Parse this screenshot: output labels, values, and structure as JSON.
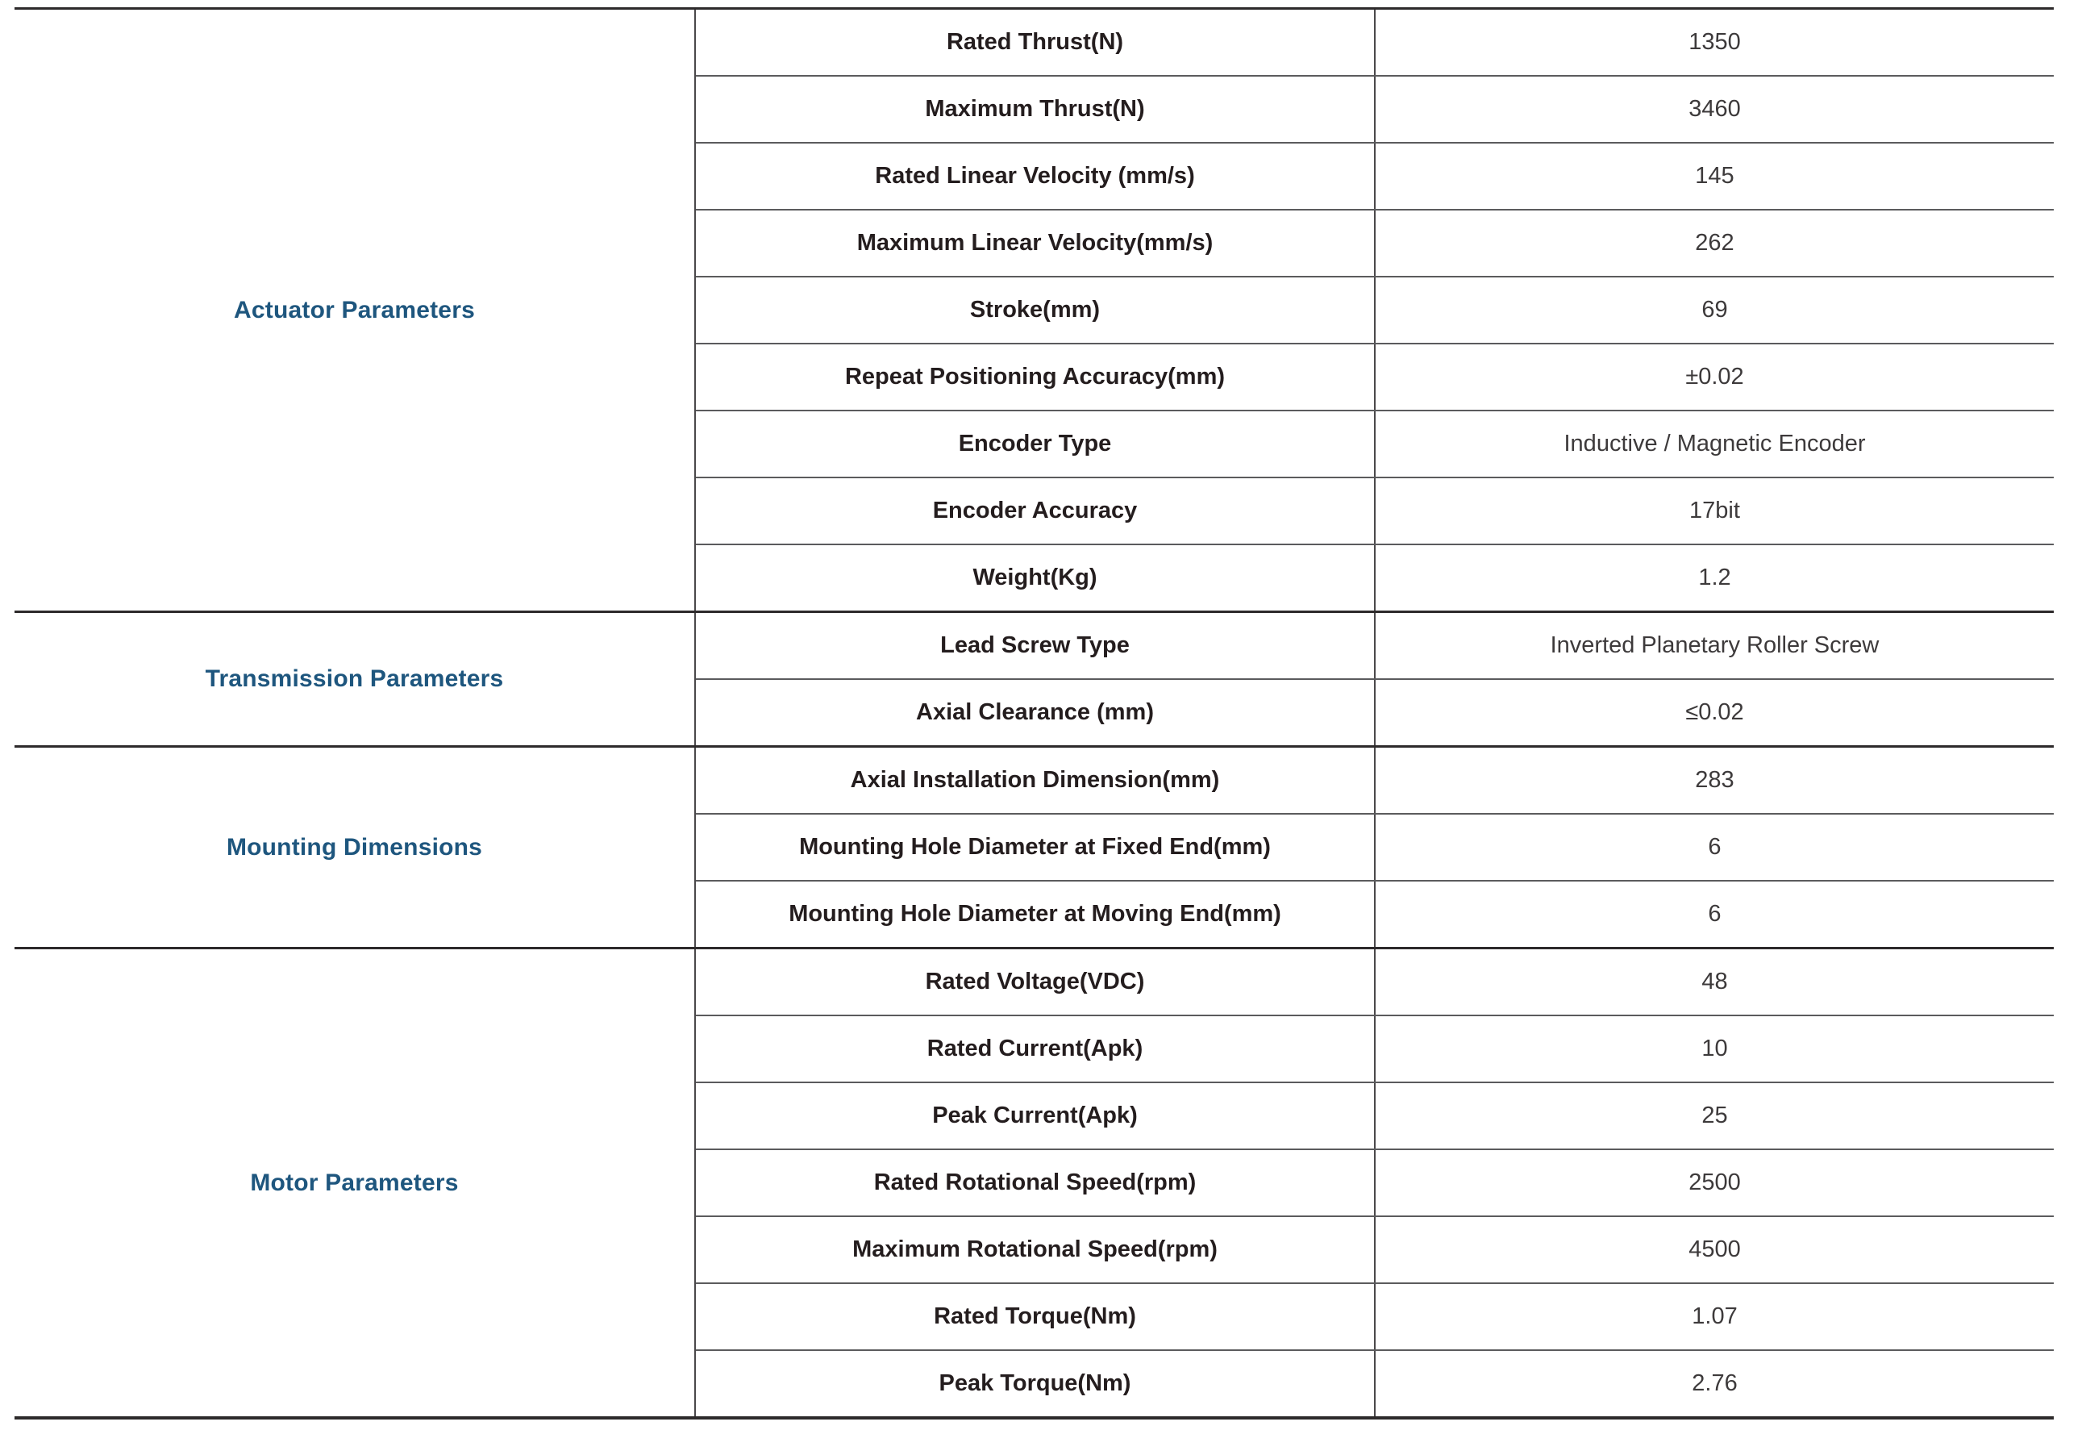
{
  "colors": {
    "category_accent": "#1E567E",
    "parameter_text": "#241D1E",
    "value_text": "#3D3A3B",
    "heavy_border": "#2D2A2B",
    "light_border": "#5B5B5D"
  },
  "table": {
    "sections": [
      {
        "category": "Actuator Parameters",
        "rows": [
          {
            "parameter": "Rated Thrust(N)",
            "value": "1350"
          },
          {
            "parameter": "Maximum Thrust(N)",
            "value": "3460"
          },
          {
            "parameter": "Rated Linear Velocity (mm/s)",
            "value": "145"
          },
          {
            "parameter": "Maximum Linear Velocity(mm/s)",
            "value": "262"
          },
          {
            "parameter": "Stroke(mm)",
            "value": "69"
          },
          {
            "parameter": "Repeat Positioning Accuracy(mm)",
            "value": "±0.02"
          },
          {
            "parameter": "Encoder Type",
            "value": "Inductive / Magnetic Encoder"
          },
          {
            "parameter": "Encoder Accuracy",
            "value": "17bit"
          },
          {
            "parameter": "Weight(Kg)",
            "value": "1.2"
          }
        ]
      },
      {
        "category": "Transmission Parameters",
        "rows": [
          {
            "parameter": "Lead Screw Type",
            "value": "Inverted Planetary Roller Screw"
          },
          {
            "parameter": "Axial Clearance (mm)",
            "value": "≤0.02"
          }
        ]
      },
      {
        "category": "Mounting Dimensions",
        "rows": [
          {
            "parameter": "Axial Installation Dimension(mm)",
            "value": "283"
          },
          {
            "parameter": "Mounting Hole Diameter at Fixed End(mm)",
            "value": "6"
          },
          {
            "parameter": "Mounting Hole Diameter at Moving End(mm)",
            "value": "6"
          }
        ]
      },
      {
        "category": "Motor Parameters",
        "rows": [
          {
            "parameter": "Rated Voltage(VDC)",
            "value": "48"
          },
          {
            "parameter": "Rated Current(Apk)",
            "value": "10"
          },
          {
            "parameter": "Peak Current(Apk)",
            "value": "25"
          },
          {
            "parameter": "Rated Rotational Speed(rpm)",
            "value": "2500"
          },
          {
            "parameter": "Maximum Rotational Speed(rpm)",
            "value": "4500"
          },
          {
            "parameter": "Rated Torque(Nm)",
            "value": "1.07"
          },
          {
            "parameter": "Peak Torque(Nm)",
            "value": "2.76"
          }
        ]
      }
    ]
  }
}
